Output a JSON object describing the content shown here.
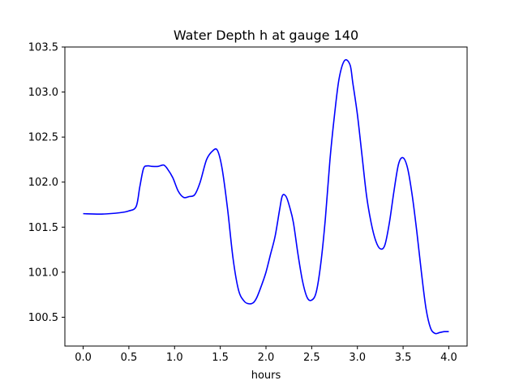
{
  "chart_data": {
    "type": "line",
    "title": "Water Depth h at gauge 140",
    "xlabel": "hours",
    "ylabel": "",
    "xlim": [
      -0.2,
      4.2
    ],
    "ylim": [
      100.18,
      103.5
    ],
    "xticks": [
      0.0,
      0.5,
      1.0,
      1.5,
      2.0,
      2.5,
      3.0,
      3.5,
      4.0
    ],
    "xtick_labels": [
      "0.0",
      "0.5",
      "1.0",
      "1.5",
      "2.0",
      "2.5",
      "3.0",
      "3.5",
      "4.0"
    ],
    "yticks": [
      100.5,
      101.0,
      101.5,
      102.0,
      102.5,
      103.0,
      103.5
    ],
    "ytick_labels": [
      "100.5",
      "101.0",
      "101.5",
      "102.0",
      "102.5",
      "103.0",
      "103.5"
    ],
    "grid": false,
    "series": [
      {
        "color": "#0000ff",
        "x": [
          0.0,
          0.2,
          0.4,
          0.5,
          0.58,
          0.62,
          0.66,
          0.7,
          0.75,
          0.82,
          0.88,
          0.92,
          0.98,
          1.04,
          1.1,
          1.16,
          1.22,
          1.28,
          1.35,
          1.42,
          1.47,
          1.52,
          1.58,
          1.64,
          1.7,
          1.76,
          1.81,
          1.86,
          1.9,
          1.95,
          2.0,
          2.05,
          2.1,
          2.15,
          2.18,
          2.22,
          2.26,
          2.3,
          2.35,
          2.4,
          2.45,
          2.5,
          2.55,
          2.6,
          2.65,
          2.7,
          2.75,
          2.8,
          2.86,
          2.92,
          2.95,
          3.0,
          3.05,
          3.1,
          3.15,
          3.2,
          3.25,
          3.3,
          3.35,
          3.4,
          3.45,
          3.5,
          3.55,
          3.6,
          3.65,
          3.7,
          3.75,
          3.8,
          3.85,
          3.9,
          3.95,
          4.0
        ],
        "y": [
          101.65,
          101.645,
          101.66,
          101.68,
          101.73,
          101.95,
          102.15,
          102.18,
          102.175,
          102.175,
          102.19,
          102.15,
          102.05,
          101.9,
          101.83,
          101.84,
          101.86,
          102.0,
          102.25,
          102.35,
          102.35,
          102.15,
          101.7,
          101.15,
          100.8,
          100.68,
          100.65,
          100.66,
          100.72,
          100.85,
          101.0,
          101.2,
          101.4,
          101.7,
          101.85,
          101.84,
          101.72,
          101.55,
          101.2,
          100.9,
          100.72,
          100.69,
          100.78,
          101.1,
          101.6,
          102.25,
          102.75,
          103.15,
          103.35,
          103.3,
          103.1,
          102.75,
          102.3,
          101.85,
          101.55,
          101.35,
          101.26,
          101.3,
          101.55,
          101.9,
          102.2,
          102.27,
          102.15,
          101.85,
          101.45,
          101.0,
          100.6,
          100.38,
          100.32,
          100.33,
          100.34,
          100.34
        ]
      }
    ]
  }
}
